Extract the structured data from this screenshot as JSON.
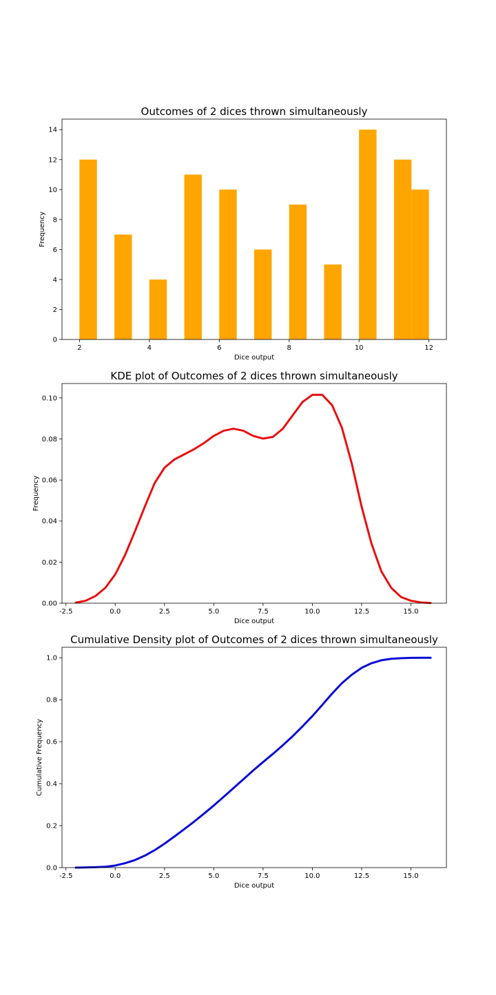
{
  "chart_data": [
    {
      "type": "bar",
      "title": "Outcomes of 2 dices thrown simultaneously",
      "xlabel": "Dice output",
      "ylabel": "Frequency",
      "xlim": [
        1.5,
        12.5
      ],
      "ylim": [
        0,
        14.7
      ],
      "grid": false,
      "color": "#ffa500",
      "xticks": [
        2,
        4,
        6,
        8,
        10,
        12
      ],
      "yticks": [
        0,
        2,
        4,
        6,
        8,
        10,
        12,
        14
      ],
      "bins": [
        {
          "x0": 2.0,
          "x1": 2.5,
          "value": 12
        },
        {
          "x0": 3.0,
          "x1": 3.5,
          "value": 7
        },
        {
          "x0": 4.0,
          "x1": 4.5,
          "value": 4
        },
        {
          "x0": 5.0,
          "x1": 5.5,
          "value": 11
        },
        {
          "x0": 6.0,
          "x1": 6.5,
          "value": 10
        },
        {
          "x0": 7.0,
          "x1": 7.5,
          "value": 6
        },
        {
          "x0": 8.0,
          "x1": 8.5,
          "value": 9
        },
        {
          "x0": 9.0,
          "x1": 9.5,
          "value": 5
        },
        {
          "x0": 10.0,
          "x1": 10.5,
          "value": 14
        },
        {
          "x0": 11.0,
          "x1": 11.5,
          "value": 12
        },
        {
          "x0": 11.5,
          "x1": 12.0,
          "value": 10
        }
      ]
    },
    {
      "type": "line",
      "title": "KDE plot of Outcomes of 2 dices thrown simultaneously",
      "xlabel": "Dice output",
      "ylabel": "Frequency",
      "xlim": [
        -2.7,
        16.8
      ],
      "ylim": [
        0,
        0.107
      ],
      "grid": false,
      "color": "#e81010",
      "xticks": [
        -2.5,
        0.0,
        2.5,
        5.0,
        7.5,
        10.0,
        12.5,
        15.0
      ],
      "yticks": [
        0.0,
        0.02,
        0.04,
        0.06,
        0.08,
        0.1
      ],
      "x": [
        -2.0,
        -1.5,
        -1.0,
        -0.5,
        0.0,
        0.5,
        1.0,
        1.5,
        2.0,
        2.5,
        3.0,
        3.5,
        4.0,
        4.5,
        5.0,
        5.5,
        6.0,
        6.5,
        7.0,
        7.5,
        8.0,
        8.5,
        9.0,
        9.5,
        10.0,
        10.5,
        11.0,
        11.5,
        12.0,
        12.5,
        13.0,
        13.5,
        14.0,
        14.5,
        15.0,
        15.5,
        16.0
      ],
      "y": [
        0.0003,
        0.0012,
        0.0035,
        0.0075,
        0.014,
        0.0235,
        0.035,
        0.047,
        0.0585,
        0.066,
        0.07,
        0.0725,
        0.075,
        0.078,
        0.0815,
        0.084,
        0.085,
        0.084,
        0.0815,
        0.0802,
        0.081,
        0.085,
        0.0915,
        0.098,
        0.1015,
        0.1015,
        0.0965,
        0.0855,
        0.068,
        0.047,
        0.029,
        0.0155,
        0.0075,
        0.003,
        0.0012,
        0.0004,
        0.0001
      ]
    },
    {
      "type": "line",
      "title": "Cumulative Density plot of Outcomes of 2 dices thrown simultaneously",
      "xlabel": "Dice output",
      "ylabel": "Cumulative Frequency",
      "xlim": [
        -2.7,
        16.8
      ],
      "ylim": [
        0,
        1.05
      ],
      "grid": false,
      "color": "#0a0ad8",
      "xticks": [
        -2.5,
        0.0,
        2.5,
        5.0,
        7.5,
        10.0,
        12.5,
        15.0
      ],
      "yticks": [
        0.0,
        0.2,
        0.4,
        0.6,
        0.8,
        1.0
      ],
      "x": [
        -2.0,
        -1.5,
        -1.0,
        -0.5,
        0.0,
        0.5,
        1.0,
        1.5,
        2.0,
        2.5,
        3.0,
        3.5,
        4.0,
        4.5,
        5.0,
        5.5,
        6.0,
        6.5,
        7.0,
        7.5,
        8.0,
        8.5,
        9.0,
        9.5,
        10.0,
        10.5,
        11.0,
        11.5,
        12.0,
        12.5,
        13.0,
        13.5,
        14.0,
        14.5,
        15.0,
        15.5,
        16.0
      ],
      "y": [
        0.0,
        0.001,
        0.002,
        0.004,
        0.01,
        0.021,
        0.036,
        0.057,
        0.083,
        0.114,
        0.148,
        0.183,
        0.219,
        0.257,
        0.296,
        0.337,
        0.379,
        0.421,
        0.463,
        0.503,
        0.542,
        0.583,
        0.626,
        0.673,
        0.722,
        0.775,
        0.829,
        0.879,
        0.919,
        0.952,
        0.974,
        0.988,
        0.995,
        0.998,
        0.9995,
        1.0,
        1.0
      ]
    }
  ]
}
